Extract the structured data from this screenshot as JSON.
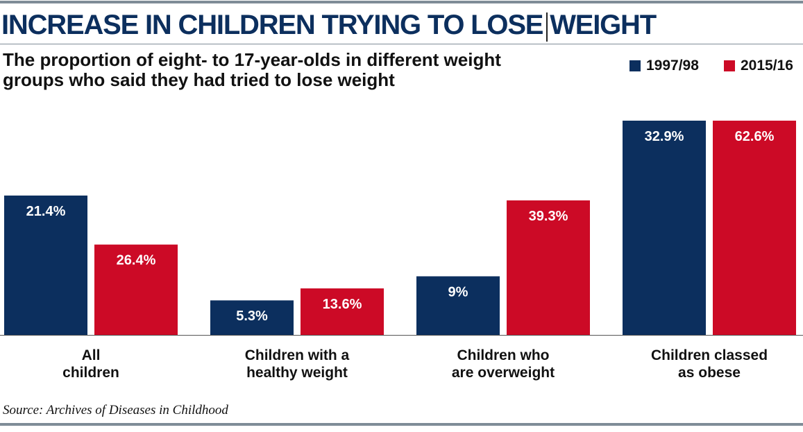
{
  "chart_data": {
    "type": "bar",
    "title": "INCREASE IN CHILDREN TRYING TO LOSE WEIGHT",
    "subtitle": "The proportion of eight- to 17-year-olds in different weight groups who said they had tried to lose weight",
    "categories": [
      [
        "All",
        "children"
      ],
      [
        "Children with a",
        "healthy weight"
      ],
      [
        "Children who",
        "are overweight"
      ],
      [
        "Children classed",
        "as obese"
      ]
    ],
    "series": [
      {
        "name": "1997/98",
        "color": "#0c2f5e",
        "values": [
          21.4,
          5.3,
          9,
          32.9
        ],
        "labels": [
          "21.4%",
          "5.3%",
          "9%",
          "32.9%"
        ]
      },
      {
        "name": "2015/16",
        "color": "#cc0a26",
        "values": [
          26.4,
          13.6,
          39.3,
          62.6
        ],
        "labels": [
          "26.4%",
          "13.6%",
          "39.3%",
          "62.6%"
        ]
      }
    ],
    "grid": false,
    "legend_position": "top-right",
    "source": "Source: Archives of Diseases in Childhood"
  }
}
